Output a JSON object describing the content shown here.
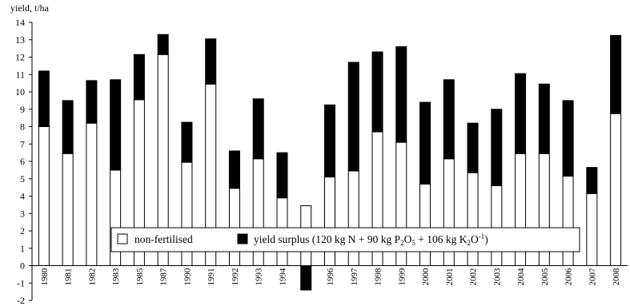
{
  "chart_data": {
    "type": "bar",
    "stacked": true,
    "ylabel": "yield, t/ha",
    "xlabel": "",
    "ylim": [
      -2,
      14
    ],
    "ytick_step": 1,
    "grid": false,
    "legend_position": "bottom-center inside plot",
    "categories": [
      "1980",
      "1981",
      "1982",
      "1983",
      "1985",
      "1987",
      "1990",
      "1991",
      "1992",
      "1993",
      "1994",
      "1995",
      "1996",
      "1997",
      "1998",
      "1999",
      "2000",
      "2001",
      "2002",
      "2003",
      "2004",
      "2005",
      "2006",
      "2007",
      "2008"
    ],
    "category_labels": [
      "1980",
      "1981",
      "1982",
      "1983",
      "1985",
      "1987",
      "1990",
      "1991",
      "1992",
      "1993",
      "1994",
      "19",
      "1996",
      "1997",
      "1998",
      "1999",
      "2000",
      "2001",
      "2002",
      "2003",
      "2004",
      "2005",
      "2006",
      "2007",
      "2008"
    ],
    "series": [
      {
        "name": "non-fertilised",
        "color": "#ffffff",
        "values": [
          8.0,
          6.45,
          8.2,
          5.5,
          9.55,
          12.15,
          5.95,
          10.45,
          4.45,
          6.15,
          3.9,
          3.45,
          5.1,
          5.45,
          7.7,
          7.1,
          4.7,
          6.15,
          5.35,
          4.6,
          6.45,
          6.45,
          5.15,
          4.15,
          8.75
        ]
      },
      {
        "name": "yield surplus (120 kg N + 90 kg P2O5 + 106 kg K2O-1)",
        "color": "#000000",
        "values": [
          3.2,
          3.05,
          2.45,
          5.2,
          2.6,
          1.15,
          2.3,
          2.6,
          2.15,
          3.45,
          2.6,
          -1.4,
          4.15,
          6.25,
          4.6,
          5.5,
          4.7,
          4.55,
          2.85,
          4.4,
          4.6,
          4.0,
          4.35,
          1.5,
          4.5
        ]
      }
    ],
    "legend": {
      "item1": "non-fertilised",
      "item2_prefix": "yield surplus (120 kg N + 90 kg P",
      "item2_sub1": "2",
      "item2_mid1": "O",
      "item2_sub2": "5",
      "item2_mid2": " + 106 kg K",
      "item2_sub3": "2",
      "item2_mid3": "O",
      "item2_sup": "-1",
      "item2_suffix": ")"
    }
  }
}
